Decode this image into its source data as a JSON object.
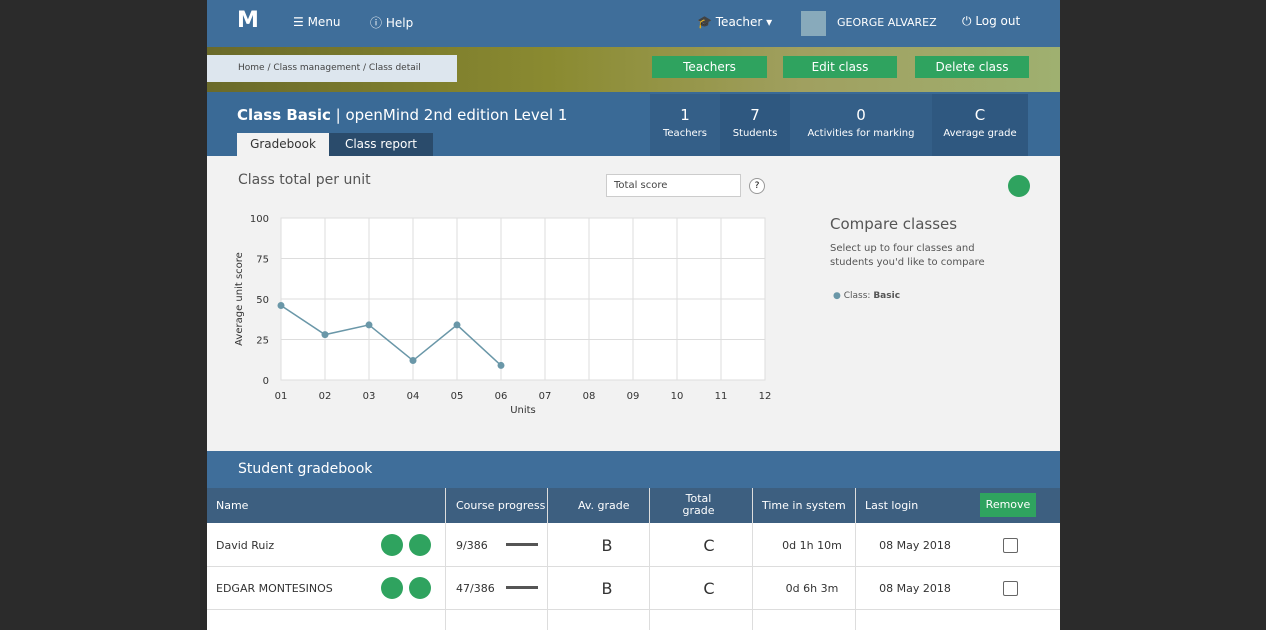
{
  "nav": {
    "menu": "Menu",
    "help": "Help",
    "role": "Teacher",
    "user": "GEORGE ALVAREZ",
    "logout": "Log out"
  },
  "breadcrumb": "Home / Class management / Class detail",
  "actions": [
    "Teachers",
    "Edit class",
    "Delete class"
  ],
  "class_header": {
    "name": "Class Basic",
    "course": " | openMind 2nd edition Level 1",
    "tabs": [
      "Gradebook",
      "Class report"
    ]
  },
  "stats": [
    {
      "value": 1,
      "label": "Teachers"
    },
    {
      "value": 7,
      "label": "Students"
    },
    {
      "value": 0,
      "label": "Activities for marking"
    },
    {
      "value": "C",
      "label": "Average grade"
    }
  ],
  "chart_data": {
    "type": "line",
    "title": "Class total per unit",
    "x_label": "Units",
    "y_label": "Average unit score",
    "categories": [
      "01",
      "02",
      "03",
      "04",
      "05",
      "06",
      "07",
      "08",
      "09",
      "10",
      "11",
      "12"
    ],
    "series": [
      {
        "name": "Basic",
        "color": "#6a97a8",
        "values": [
          46,
          28,
          34,
          12,
          34,
          9,
          null,
          null,
          null,
          null,
          null,
          null
        ]
      }
    ],
    "ylim": [
      0,
      100
    ],
    "yticks": [
      0,
      25,
      50,
      75,
      100
    ],
    "grid": true
  },
  "selector": {
    "value": "Total score",
    "help": "?"
  },
  "compare": {
    "title": "Compare classes",
    "text": "Select up to four classes and students you'd like to compare",
    "legend_prefix": "Class: "
  },
  "gradebook": {
    "title": "Student gradebook",
    "columns": [
      "Name",
      "Course progress",
      "Av. grade",
      "Total grade",
      "Time in system",
      "Last login"
    ],
    "remove": "Remove",
    "rows": [
      [
        "David Ruiz",
        "9/386",
        "B",
        "C",
        "0d 1h 10m",
        "08 May 2018"
      ],
      [
        "EDGAR MONTESINOS",
        "47/386",
        "B",
        "C",
        "0d 6h 3m",
        "08 May 2018"
      ]
    ]
  }
}
